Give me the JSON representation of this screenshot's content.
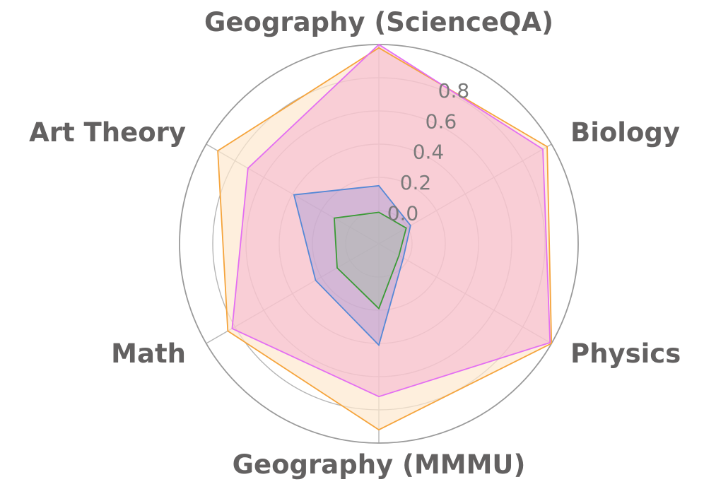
{
  "chart_data": {
    "type": "radar",
    "axes": [
      "Geography (ScienceQA)",
      "Biology",
      "Physics",
      "Geography (MMMU)",
      "Math",
      "Art Theory"
    ],
    "ticks": [
      0.0,
      0.2,
      0.4,
      0.6,
      0.8
    ],
    "tick_labels": [
      "0.0",
      "0.2",
      "0.4",
      "0.6",
      "0.8"
    ],
    "rlim": [
      -0.2,
      1.0
    ],
    "grid": true,
    "series": [
      {
        "values": [
          0.98,
          0.97,
          1.0,
          0.92,
          0.85,
          0.92
        ],
        "stroke": "#f5a43c",
        "fill": "#fde8cf",
        "fill_opacity": 0.7
      },
      {
        "values": [
          1.0,
          0.94,
          0.99,
          0.72,
          0.82,
          0.71
        ],
        "stroke": "#e36ef2",
        "fill": "#f3a6cf",
        "fill_opacity": 0.45
      },
      {
        "values": [
          0.15,
          0.02,
          -0.03,
          0.41,
          0.24,
          0.39
        ],
        "stroke": "#5588d6",
        "fill": "#8f8bd6",
        "fill_opacity": 0.35
      },
      {
        "values": [
          -0.01,
          -0.01,
          -0.06,
          0.19,
          0.09,
          0.11
        ],
        "stroke": "#3a9a35",
        "fill": "#a7b9a9",
        "fill_opacity": 0.5
      }
    ]
  }
}
